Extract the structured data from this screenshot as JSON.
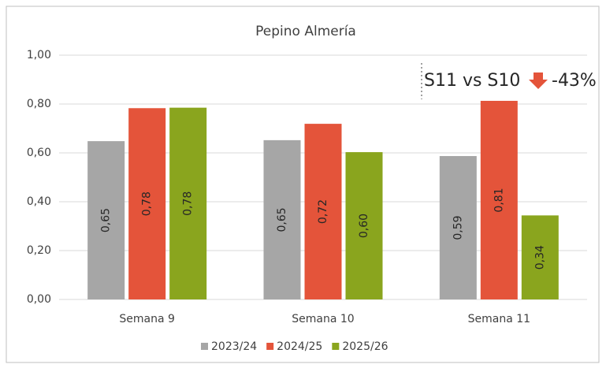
{
  "chart_data": {
    "type": "bar",
    "title": "Pepino Almería",
    "categories": [
      "Semana 9",
      "Semana 10",
      "Semana 11"
    ],
    "series": [
      {
        "name": "2023/24",
        "color": "#a6a6a6",
        "values": [
          0.648,
          0.652,
          0.587
        ],
        "value_labels": [
          "0,65",
          "0,65",
          "0,59"
        ]
      },
      {
        "name": "2024/25",
        "color": "#e4543a",
        "values": [
          0.783,
          0.719,
          0.813
        ],
        "value_labels": [
          "0,78",
          "0,72",
          "0,81"
        ]
      },
      {
        "name": "2025/26",
        "color": "#8aa51e",
        "values": [
          0.785,
          0.603,
          0.344
        ],
        "value_labels": [
          "0,78",
          "0,60",
          "0,34"
        ]
      }
    ],
    "ylim": [
      0,
      1
    ],
    "yticks": [
      {
        "value": 0,
        "label": "0,00"
      },
      {
        "value": 0.2,
        "label": "0,20"
      },
      {
        "value": 0.4,
        "label": "0,40"
      },
      {
        "value": 0.6,
        "label": "0,60"
      },
      {
        "value": 0.8,
        "label": "0,80"
      },
      {
        "value": 1,
        "label": "1,00"
      }
    ],
    "grid": true,
    "legend": "bottom",
    "annotations": [
      "S11 vs S10",
      "-43%"
    ]
  }
}
